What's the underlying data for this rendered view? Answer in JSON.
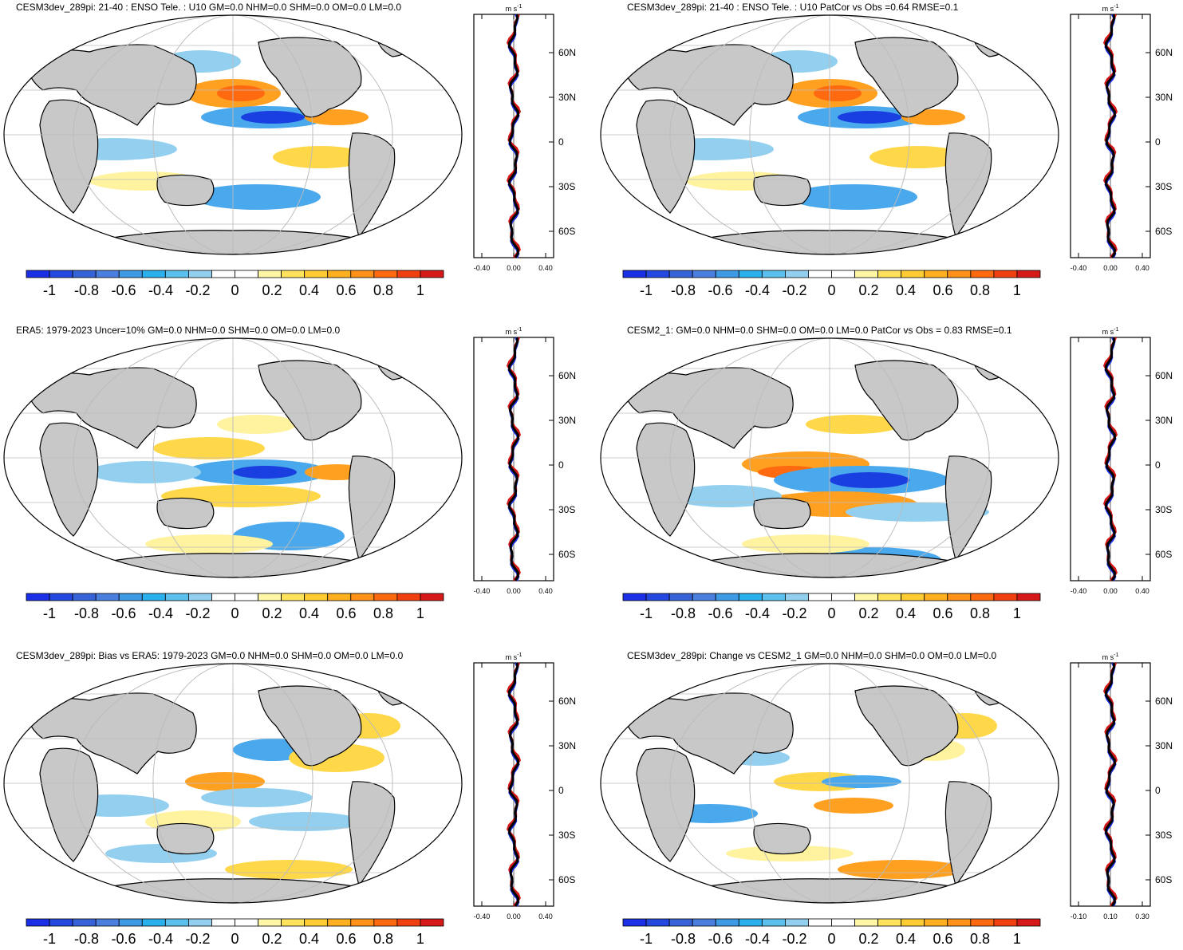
{
  "colorbar": {
    "colors": [
      "#1a2fe6",
      "#2448e0",
      "#3763d8",
      "#4a7edf",
      "#3f9ae6",
      "#2bb0ee",
      "#5cc0ef",
      "#93d0f0",
      "#ffffff",
      "#ffffff",
      "#fff6a6",
      "#ffe35c",
      "#ffcc33",
      "#ffb020",
      "#ff9018",
      "#ff6a10",
      "#f04010",
      "#d51818"
    ],
    "labels": [
      "-1",
      "-0.8",
      "-0.6",
      "-0.4",
      "-0.2",
      "0",
      "0.2",
      "0.4",
      "0.6",
      "0.8",
      "1"
    ]
  },
  "lat_labels": [
    "60N",
    "30N",
    "0",
    "30S",
    "60S"
  ],
  "units": "m s",
  "units_sup": "-1",
  "panels": [
    {
      "title": "CESM3dev_289pi: 21-40 : ENSO Tele. : U10 GM=0.0 NHM=0.0 SHM=0.0 OM=0.0 LM=0.0",
      "x_ticks": [
        "-0.40",
        "0.00",
        "0.40"
      ]
    },
    {
      "title": "CESM3dev_289pi: 21-40 : ENSO Tele. : U10 PatCor vs Obs =0.64 RMSE=0.1",
      "x_ticks": [
        "-0.40",
        "0.00",
        "0.40"
      ]
    },
    {
      "title": "ERA5: 1979-2023 Uncer=10% GM=0.0 NHM=0.0 SHM=0.0 OM=0.0 LM=0.0",
      "x_ticks": [
        "-0.40",
        "0.00",
        "0.40"
      ]
    },
    {
      "title": "CESM2_1: GM=0.0 NHM=0.0 SHM=0.0 OM=0.0 LM=0.0 PatCor vs Obs = 0.83 RMSE=0.1",
      "x_ticks": [
        "-0.40",
        "0.00",
        "0.40"
      ]
    },
    {
      "title": "CESM3dev_289pi: Bias vs ERA5: 1979-2023 GM=0.0 NHM=0.0 SHM=0.0 OM=0.0 LM=0.0",
      "x_ticks": [
        "-0.40",
        "0.00",
        "0.40"
      ]
    },
    {
      "title": "CESM3dev_289pi: Change vs CESM2_1 GM=0.0 NHM=0.0 SHM=0.0 OM=0.0 LM=0.0",
      "x_ticks": [
        "-0.10",
        "0.10",
        "0.30"
      ]
    }
  ]
}
